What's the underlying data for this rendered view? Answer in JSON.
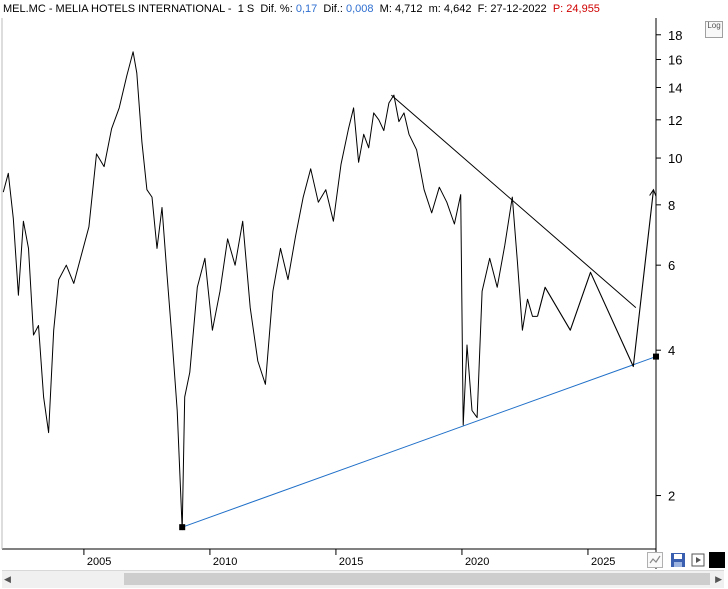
{
  "header": {
    "symbol": "MEL.MC - MELIA HOTELS INTERNATIONAL -",
    "timeframe": "1 S",
    "dif_pct_label": "Dif. %:",
    "dif_pct_value": "0,17",
    "dif_label": "Dif.:",
    "dif_value": "0,008",
    "max_label": "M:",
    "max_value": "4,712",
    "min_label": "m:",
    "min_value": "4,642",
    "date_label": "F:",
    "date_value": "27-12-2022",
    "price_label": "P:",
    "price_value": "24,955"
  },
  "log_button_label": "Log",
  "icons": {
    "scroll_left": "chevron-left-icon",
    "scroll_right": "chevron-right-icon",
    "chart_type": "line-chart-icon",
    "save": "save-icon",
    "color": "black-square-icon"
  },
  "colors": {
    "price": "#000000",
    "support_line": "#1f6fc8",
    "resistance_line": "#000000",
    "projection": "#000000",
    "header_value": "#2f6fd0",
    "header_price": "#d00000"
  },
  "chart_data": {
    "type": "line",
    "yscale": "log",
    "ylim": [
      1.55,
      19.5
    ],
    "xlim": [
      2001.75,
      2027.7
    ],
    "yticks": [
      2,
      4,
      6,
      8,
      10,
      12,
      14,
      16,
      18
    ],
    "xticks": [
      2005,
      2010,
      2015,
      2020,
      2025
    ],
    "series": [
      {
        "role": "weekly price",
        "x": [
          2001.8,
          2002.0,
          2002.2,
          2002.4,
          2002.6,
          2002.8,
          2003.0,
          2003.2,
          2003.4,
          2003.6,
          2003.8,
          2004.0,
          2004.3,
          2004.6,
          2004.9,
          2005.2,
          2005.5,
          2005.8,
          2006.1,
          2006.4,
          2006.7,
          2006.95,
          2007.1,
          2007.3,
          2007.5,
          2007.7,
          2007.9,
          2008.1,
          2008.3,
          2008.5,
          2008.7,
          2008.9,
          2009.0,
          2009.2,
          2009.5,
          2009.8,
          2010.1,
          2010.4,
          2010.7,
          2011.0,
          2011.3,
          2011.6,
          2011.9,
          2012.2,
          2012.5,
          2012.8,
          2013.1,
          2013.4,
          2013.7,
          2014.0,
          2014.3,
          2014.6,
          2014.9,
          2015.2,
          2015.5,
          2015.7,
          2015.9,
          2016.1,
          2016.3,
          2016.5,
          2016.7,
          2016.9,
          2017.1,
          2017.3,
          2017.5,
          2017.7,
          2017.9,
          2018.2,
          2018.5,
          2018.8,
          2019.1,
          2019.4,
          2019.7,
          2019.95,
          2020.05,
          2020.2,
          2020.4,
          2020.6,
          2020.8,
          2021.1,
          2021.4,
          2021.7,
          2022.0,
          2022.2,
          2022.4,
          2022.6,
          2022.8,
          2023.0
        ],
        "y": [
          8.5,
          9.3,
          7.5,
          5.2,
          7.4,
          6.5,
          4.3,
          4.5,
          3.2,
          2.7,
          4.4,
          5.6,
          6.0,
          5.5,
          6.3,
          7.2,
          10.2,
          9.6,
          11.5,
          12.7,
          14.8,
          16.6,
          15.0,
          10.8,
          8.6,
          8.3,
          6.5,
          7.9,
          5.7,
          4.2,
          3.0,
          1.7,
          3.2,
          3.6,
          5.4,
          6.2,
          4.4,
          5.3,
          6.8,
          6.0,
          7.4,
          4.9,
          3.8,
          3.4,
          5.3,
          6.5,
          5.6,
          6.9,
          8.3,
          9.5,
          8.1,
          8.6,
          7.4,
          9.7,
          11.5,
          12.7,
          9.8,
          11.2,
          10.5,
          12.4,
          12.0,
          11.4,
          13.0,
          13.5,
          11.9,
          12.4,
          11.2,
          10.4,
          8.6,
          7.7,
          8.7,
          8.1,
          7.3,
          8.4,
          2.8,
          4.1,
          3.0,
          2.9,
          5.3,
          6.2,
          5.4,
          6.6,
          8.3,
          6.1,
          4.4,
          5.1,
          4.7,
          4.7
        ]
      },
      {
        "role": "projection",
        "x": [
          2023.0,
          2023.3,
          2024.3,
          2025.1,
          2026.8,
          2027.6
        ],
        "y": [
          4.7,
          5.4,
          4.4,
          5.8,
          3.7,
          8.6
        ]
      }
    ],
    "trendlines": [
      {
        "role": "support",
        "x": [
          2008.9,
          2027.7
        ],
        "y": [
          1.72,
          3.88
        ]
      },
      {
        "role": "resistance",
        "x": [
          2017.2,
          2026.9
        ],
        "y": [
          13.5,
          4.9
        ]
      }
    ],
    "markers": [
      {
        "x": 2008.9,
        "y": 1.72
      },
      {
        "x": 2027.7,
        "y": 3.88
      }
    ],
    "grid": false
  }
}
